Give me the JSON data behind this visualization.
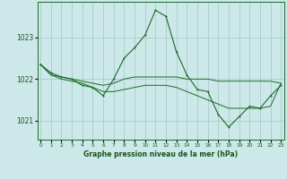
{
  "title": "Graphe pression niveau de la mer (hPa)",
  "background_color": "#cce8e8",
  "plot_background": "#cce8e8",
  "grid_color": "#aacccc",
  "line_color": "#1a6b2a",
  "text_color": "#1a5520",
  "hours": [
    0,
    1,
    2,
    3,
    4,
    5,
    6,
    7,
    8,
    9,
    10,
    11,
    12,
    13,
    14,
    15,
    16,
    17,
    18,
    19,
    20,
    21,
    22,
    23
  ],
  "series_main": [
    1022.35,
    1022.15,
    1022.05,
    1022.0,
    1021.85,
    1021.8,
    1021.6,
    1022.0,
    1022.5,
    1022.75,
    1023.05,
    1023.65,
    1023.5,
    1022.65,
    1022.1,
    1021.75,
    1021.7,
    1021.15,
    1020.85,
    1021.1,
    1021.35,
    1021.3,
    1021.6,
    1021.85
  ],
  "series_flat": [
    1022.35,
    1022.1,
    1022.05,
    1022.0,
    1021.95,
    1021.9,
    1021.85,
    1021.9,
    1022.0,
    1022.05,
    1022.05,
    1022.05,
    1022.05,
    1022.05,
    1022.0,
    1022.0,
    1022.0,
    1021.95,
    1021.95,
    1021.95,
    1021.95,
    1021.95,
    1021.95,
    1021.9
  ],
  "series_decline": [
    1022.35,
    1022.1,
    1022.0,
    1021.95,
    1021.9,
    1021.8,
    1021.7,
    1021.7,
    1021.75,
    1021.8,
    1021.85,
    1021.85,
    1021.85,
    1021.8,
    1021.7,
    1021.6,
    1021.5,
    1021.4,
    1021.3,
    1021.3,
    1021.3,
    1021.3,
    1021.35,
    1021.9
  ],
  "ylim_min": 1020.55,
  "ylim_max": 1023.85,
  "yticks": [
    1021.0,
    1022.0,
    1023.0
  ],
  "ylabel_fontsize": 5.5,
  "xlabel_fontsize": 4.2,
  "title_fontsize": 5.5
}
